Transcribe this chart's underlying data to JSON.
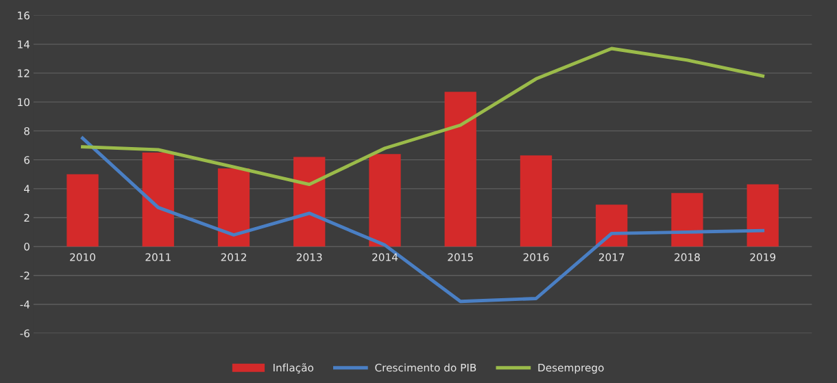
{
  "chart_data": {
    "type": "bar",
    "categories": [
      "2010",
      "2011",
      "2012",
      "2013",
      "2014",
      "2015",
      "2016",
      "2017",
      "2018",
      "2019"
    ],
    "series": [
      {
        "name": "Inflação",
        "color": "#d42a2a",
        "values": [
          5.0,
          6.5,
          5.4,
          6.2,
          6.4,
          10.7,
          6.3,
          2.9,
          3.7,
          4.3
        ]
      },
      {
        "name": "Crescimento do PIB",
        "type": "line",
        "color": "#4a7fc4",
        "values": [
          7.5,
          2.7,
          0.8,
          2.3,
          0.1,
          -3.8,
          -3.6,
          0.9,
          1.0,
          1.1
        ]
      },
      {
        "name": "Desemprego",
        "type": "line",
        "color": "#9bbb4a",
        "values": [
          6.9,
          6.7,
          5.5,
          4.3,
          6.8,
          8.4,
          11.6,
          13.7,
          12.9,
          11.8
        ]
      }
    ],
    "ylim": [
      -6,
      16
    ],
    "yticks": [
      -6,
      -4,
      -2,
      0,
      2,
      4,
      6,
      8,
      10,
      12,
      14,
      16
    ],
    "grid": "y",
    "legend": "bottom",
    "marker": "none",
    "line_style": "solid"
  }
}
